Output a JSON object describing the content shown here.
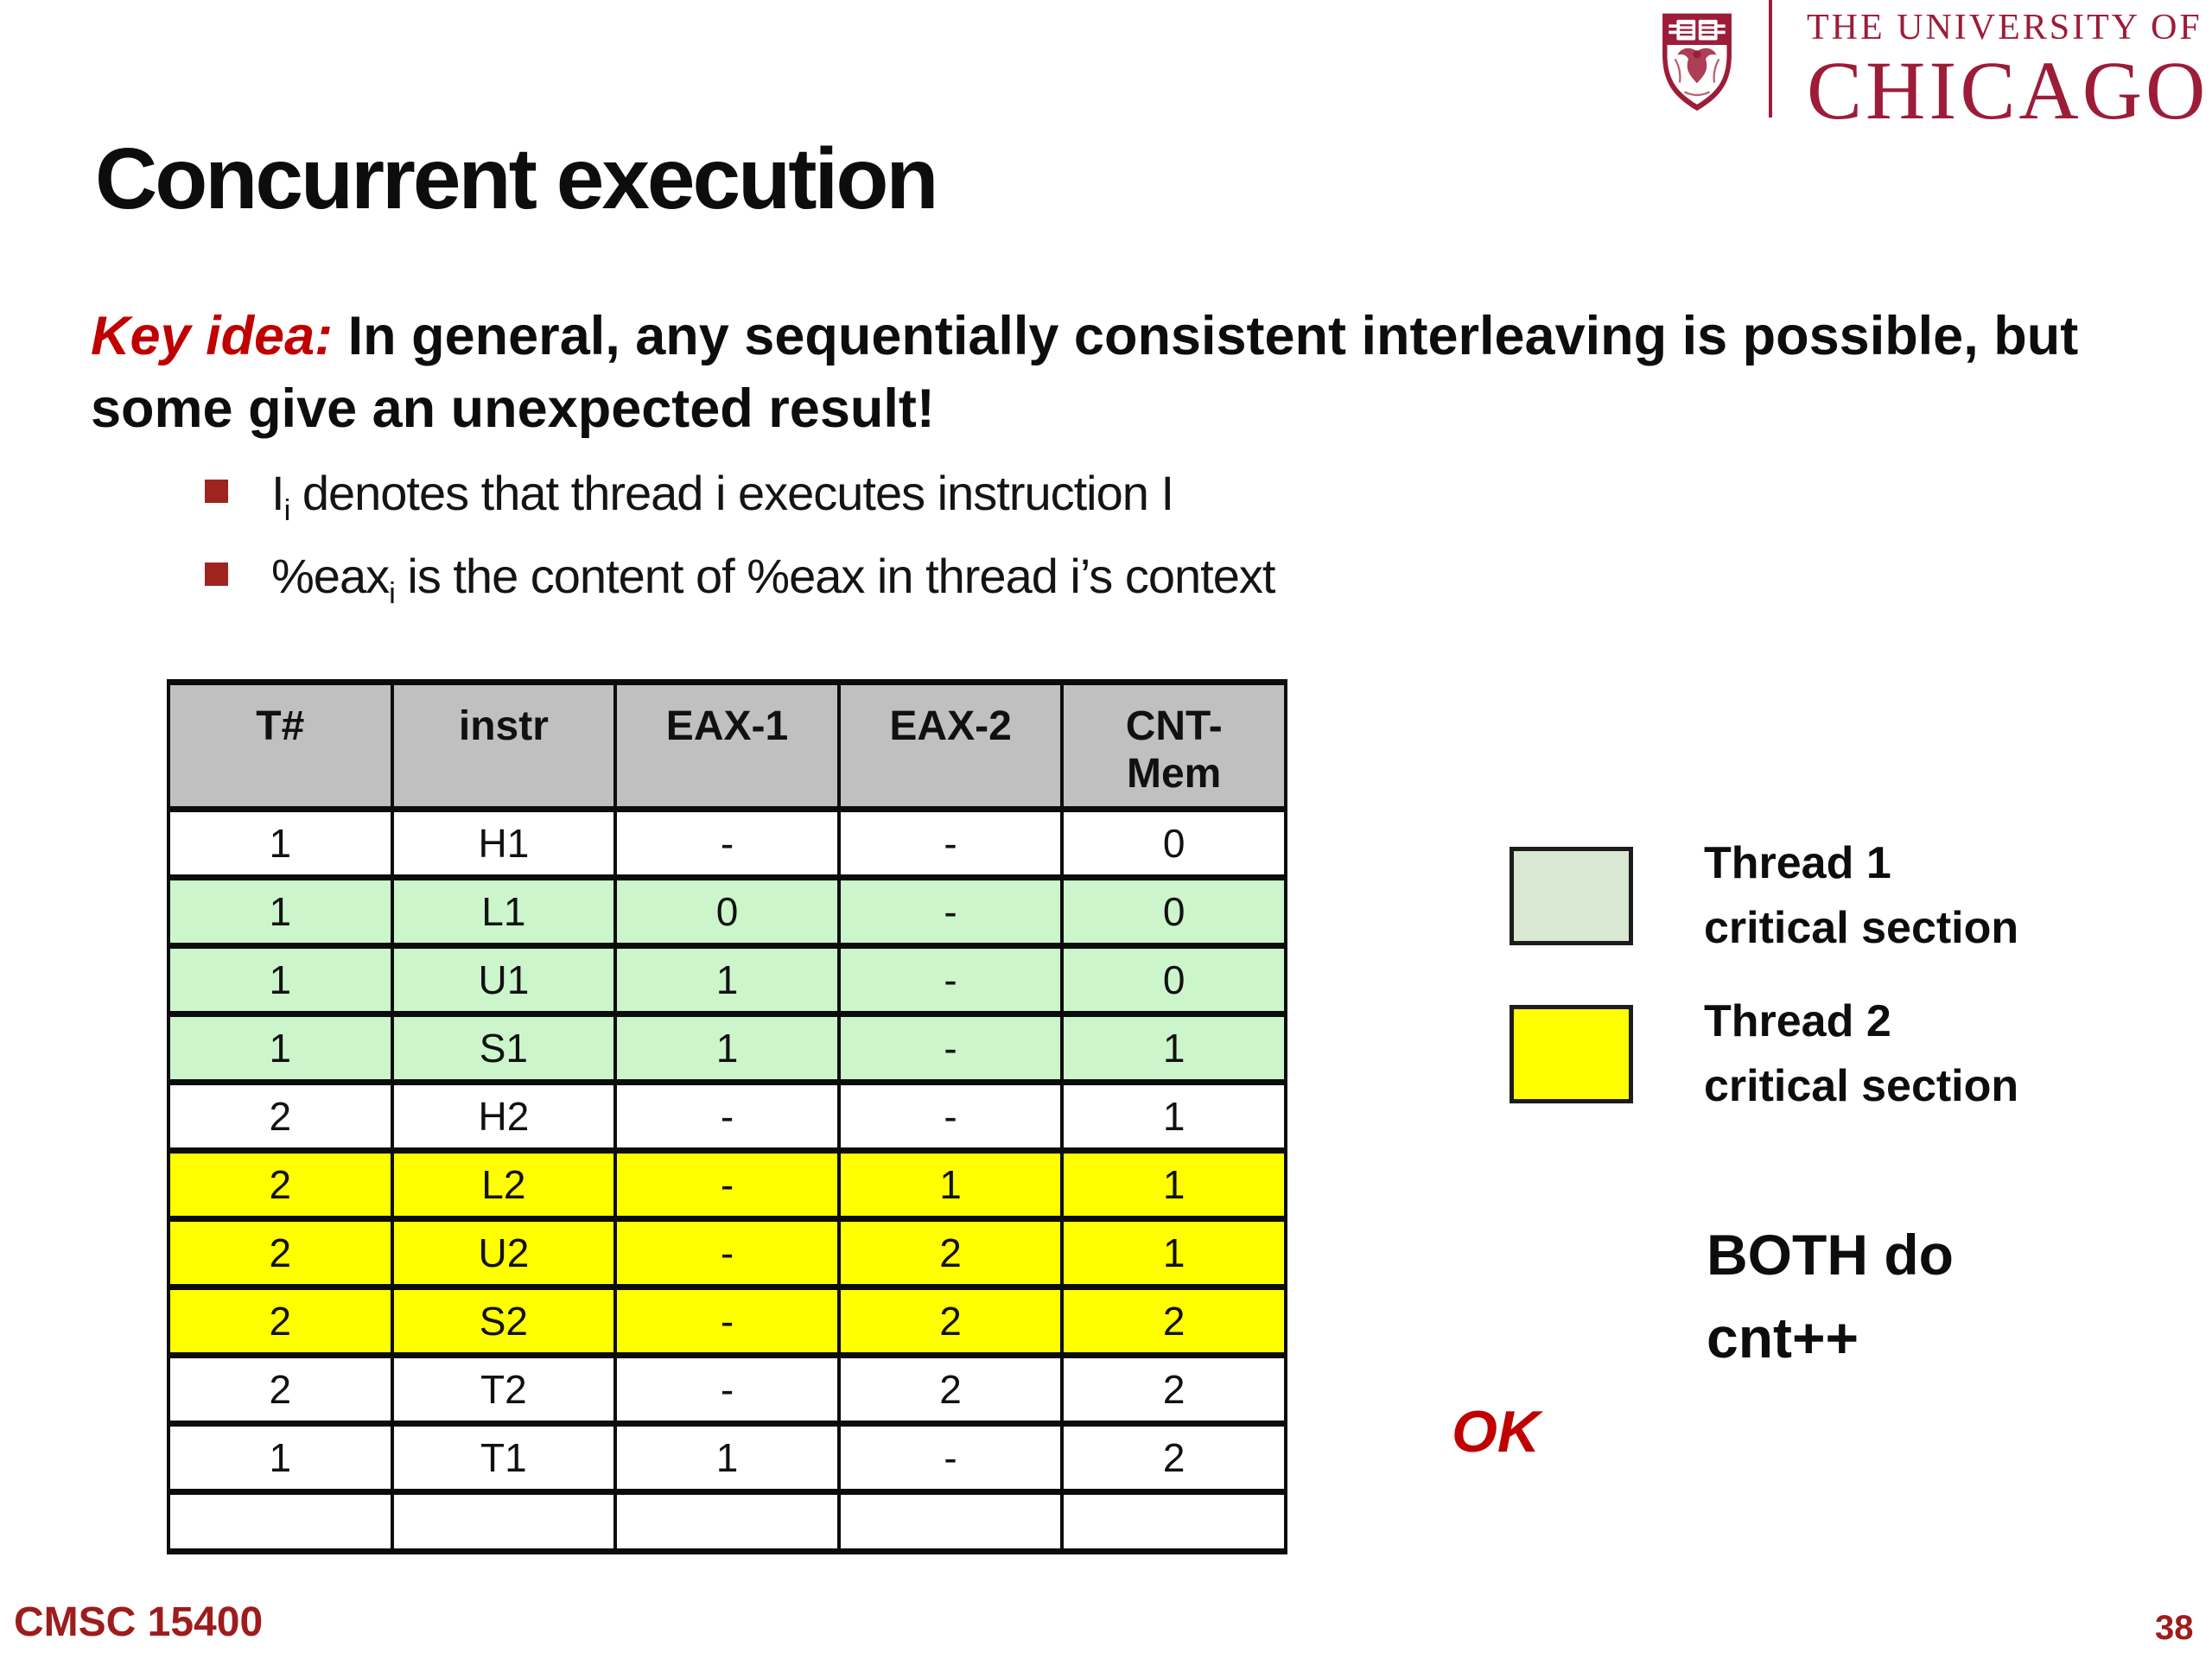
{
  "header": {
    "university_line1": "THE UNIVERSITY OF",
    "university_line2": "CHICAGO"
  },
  "title": "Concurrent execution",
  "key_idea": {
    "label": "Key idea:",
    "text": "In general, any sequentially consistent interleaving is possible, but some give an unexpected result!"
  },
  "bullets": [
    {
      "pre": "I",
      "sub": "i",
      "rest": " denotes that thread i executes instruction I"
    },
    {
      "pre": "%eax",
      "sub": "i",
      "rest": " is the content of %eax in thread i’s context"
    }
  ],
  "table": {
    "headers": [
      "T#",
      "instr",
      "EAX-1",
      "EAX-2",
      "CNT-Mem"
    ],
    "rows": [
      {
        "cells": [
          "1",
          "H1",
          "-",
          "-",
          "0"
        ],
        "highlight": "white"
      },
      {
        "cells": [
          "1",
          "L1",
          "0",
          "-",
          "0"
        ],
        "highlight": "green"
      },
      {
        "cells": [
          "1",
          "U1",
          "1",
          "-",
          "0"
        ],
        "highlight": "green"
      },
      {
        "cells": [
          "1",
          "S1",
          "1",
          "-",
          "1"
        ],
        "highlight": "green"
      },
      {
        "cells": [
          "2",
          "H2",
          "-",
          "-",
          "1"
        ],
        "highlight": "white"
      },
      {
        "cells": [
          "2",
          "L2",
          "-",
          "1",
          "1"
        ],
        "highlight": "yellow"
      },
      {
        "cells": [
          "2",
          "U2",
          "-",
          "2",
          "1"
        ],
        "highlight": "yellow"
      },
      {
        "cells": [
          "2",
          "S2",
          "-",
          "2",
          "2"
        ],
        "highlight": "yellow"
      },
      {
        "cells": [
          "2",
          "T2",
          "-",
          "2",
          "2"
        ],
        "highlight": "white"
      },
      {
        "cells": [
          "1",
          "T1",
          "1",
          "-",
          "2"
        ],
        "highlight": "white"
      },
      {
        "cells": [
          "",
          "",
          "",
          "",
          ""
        ],
        "highlight": "white"
      }
    ]
  },
  "legend": [
    {
      "color": "#d8e8d2",
      "line1": "Thread 1",
      "line2": "critical section"
    },
    {
      "color": "#ffff00",
      "line1": "Thread 2",
      "line2": "critical section"
    }
  ],
  "annotation": {
    "line1": "BOTH do",
    "line2": "cnt++"
  },
  "verdict": "OK",
  "footer": {
    "course": "CMSC 15400",
    "page": "38"
  },
  "colors": {
    "brand_maroon": "#9d1c38",
    "accent_red": "#c00000",
    "bullet_red": "#9e2420",
    "footer_red": "#9e1c1c",
    "header_gray": "#c0c0c0",
    "green_row": "#ccf5cc",
    "yellow_row": "#ffff00",
    "legend_green": "#d8e8d2"
  }
}
